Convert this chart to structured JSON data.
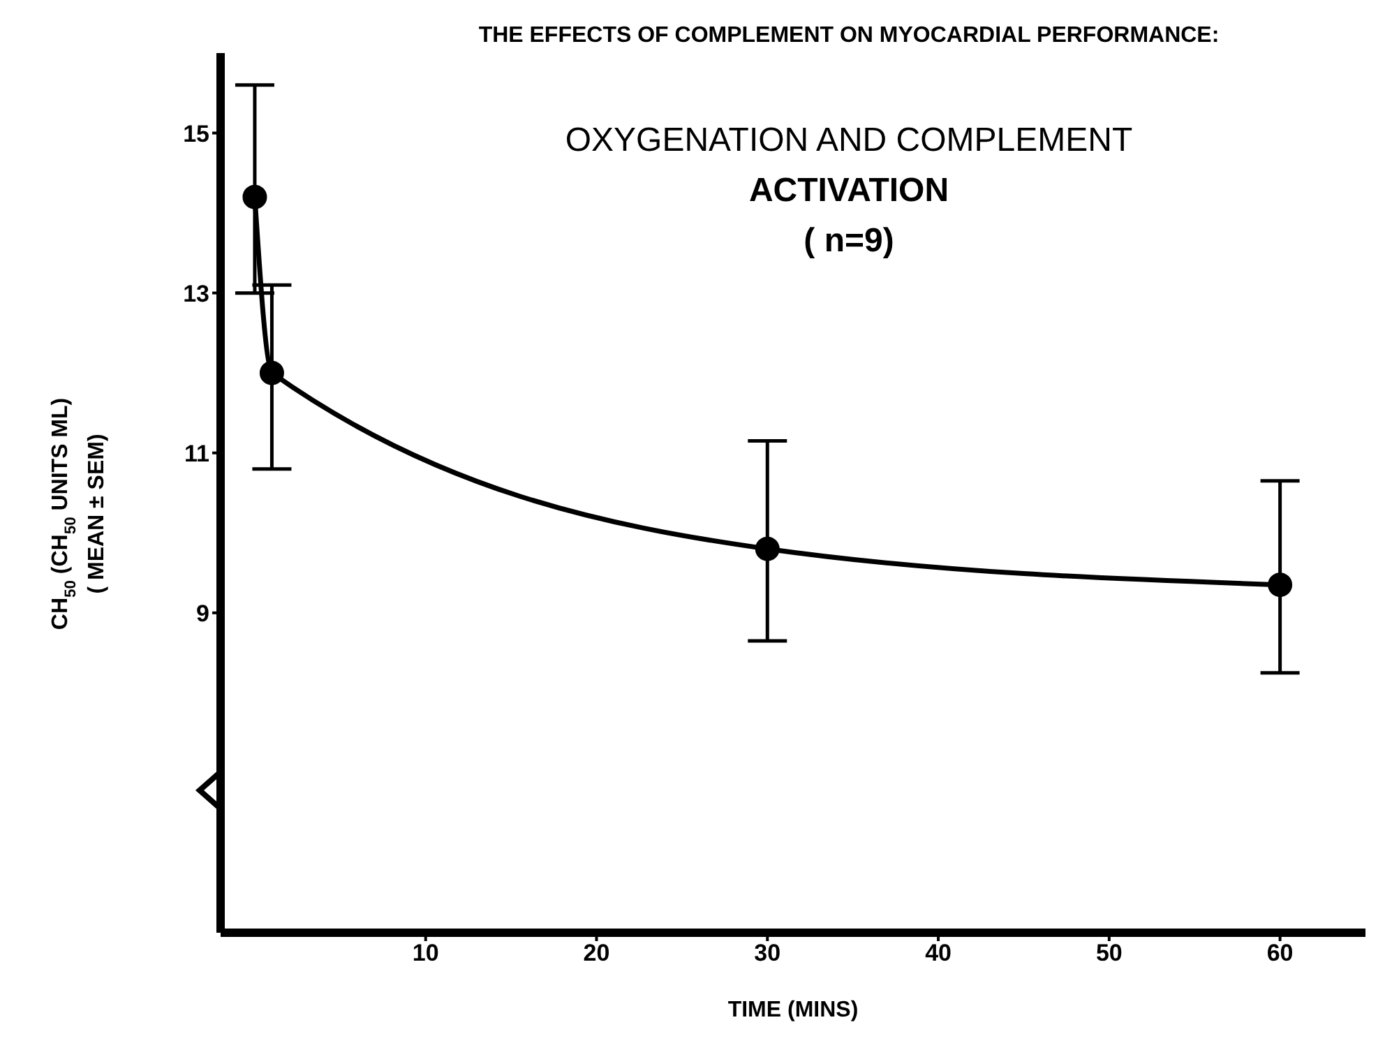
{
  "chart_data": {
    "type": "line",
    "title": "THE EFFECTS OF COMPLEMENT ON MYOCARDIAL PERFORMANCE:",
    "subtitle": "OXYGENATION AND COMPLEMENT\nACTIVATION\n( n=9)",
    "xlabel": "TIME (MINS)",
    "ylabel": "CH$_{50}$ (CH$_{50}$ UNITS ML)\n( MEAN ± SEM)",
    "x": [
      0,
      1,
      30,
      60
    ],
    "series": [
      {
        "color": "#000000",
        "values": [
          14.2,
          12.0,
          9.8,
          9.35
        ],
        "errors": [
          [
            13.0,
            15.6
          ],
          [
            10.8,
            13.1
          ],
          [
            8.65,
            11.15
          ],
          [
            8.25,
            10.65
          ]
        ]
      }
    ],
    "xlim": [
      -2,
      65
    ],
    "xticks": [
      10,
      20,
      30,
      40,
      50,
      60
    ],
    "ylim": [
      5,
      16
    ],
    "yticks": [
      9,
      11,
      13,
      15
    ],
    "marker": "circle",
    "line_style": "solid"
  }
}
